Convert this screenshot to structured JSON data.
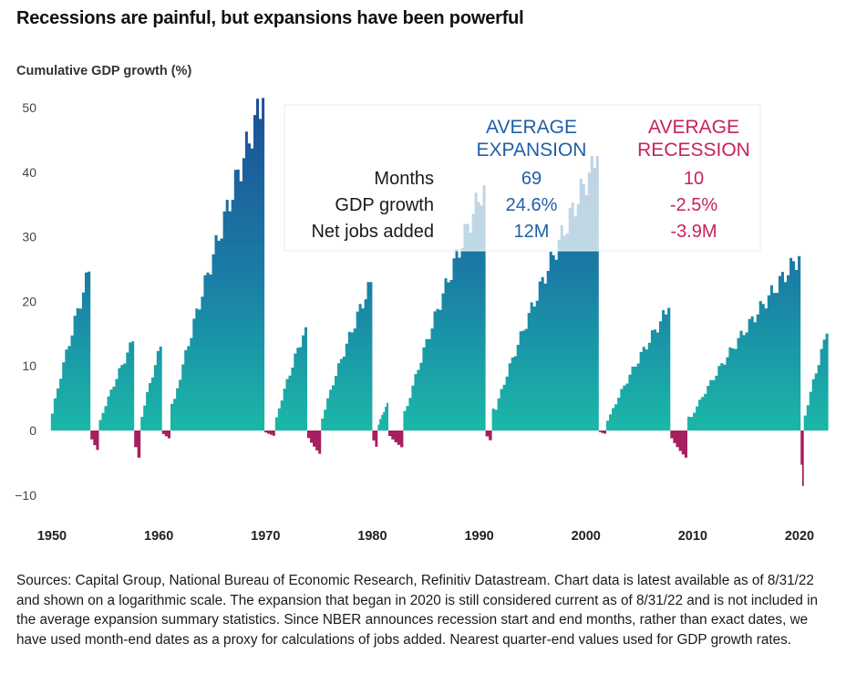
{
  "title": "Recessions are painful, but expansions have been powerful",
  "chart_data": {
    "type": "area",
    "ylabel": "Cumulative GDP growth (%)",
    "xlabel": "",
    "ylim": [
      -10,
      53
    ],
    "xlim": [
      1950,
      2023
    ],
    "y_ticks": [
      50,
      40,
      30,
      20,
      10,
      0,
      -10
    ],
    "x_ticks": [
      1950,
      1960,
      1970,
      1980,
      1990,
      2000,
      2010,
      2020
    ],
    "colors": {
      "expansion_top": "#1c5f9c",
      "expansion_bottom": "#19b3a6",
      "recession": "#a61f5e",
      "expansion_header": "#1f5fa8",
      "recession_header": "#c8215e"
    },
    "series": [
      {
        "name": "expansion",
        "start": 1949.9,
        "end": 1953.6,
        "peak": 24.6
      },
      {
        "name": "recession",
        "start": 1953.6,
        "end": 1954.4,
        "trough": -3.0
      },
      {
        "name": "expansion",
        "start": 1954.4,
        "end": 1957.7,
        "peak": 13.8
      },
      {
        "name": "recession",
        "start": 1957.7,
        "end": 1958.3,
        "trough": -4.2
      },
      {
        "name": "expansion",
        "start": 1958.3,
        "end": 1960.3,
        "peak": 13.0
      },
      {
        "name": "recession",
        "start": 1960.3,
        "end": 1961.1,
        "trough": -1.2
      },
      {
        "name": "expansion",
        "start": 1961.1,
        "end": 1969.9,
        "peak": 51.5
      },
      {
        "name": "recession",
        "start": 1969.9,
        "end": 1970.9,
        "trough": -0.8
      },
      {
        "name": "expansion",
        "start": 1970.9,
        "end": 1973.9,
        "peak": 16.0
      },
      {
        "name": "recession",
        "start": 1973.9,
        "end": 1975.2,
        "trough": -3.6
      },
      {
        "name": "expansion",
        "start": 1975.2,
        "end": 1980.0,
        "peak": 23.0
      },
      {
        "name": "recession",
        "start": 1980.0,
        "end": 1980.5,
        "trough": -2.5
      },
      {
        "name": "expansion",
        "start": 1980.5,
        "end": 1981.5,
        "peak": 4.3
      },
      {
        "name": "recession",
        "start": 1981.5,
        "end": 1982.9,
        "trough": -2.6
      },
      {
        "name": "expansion",
        "start": 1982.9,
        "end": 1990.6,
        "peak": 38.0
      },
      {
        "name": "recession",
        "start": 1990.6,
        "end": 1991.2,
        "trough": -1.5
      },
      {
        "name": "expansion",
        "start": 1991.2,
        "end": 2001.2,
        "peak": 42.5
      },
      {
        "name": "recession",
        "start": 2001.2,
        "end": 2001.9,
        "trough": -0.5
      },
      {
        "name": "expansion",
        "start": 2001.9,
        "end": 2007.9,
        "peak": 19.0
      },
      {
        "name": "recession",
        "start": 2007.9,
        "end": 2009.5,
        "trough": -4.2
      },
      {
        "name": "expansion",
        "start": 2009.5,
        "end": 2020.1,
        "peak": 27.0
      },
      {
        "name": "recession",
        "start": 2020.1,
        "end": 2020.4,
        "trough": -8.6
      },
      {
        "name": "expansion",
        "start": 2020.4,
        "end": 2022.7,
        "peak": 15.0
      }
    ],
    "summary": {
      "expansion_header": [
        "AVERAGE",
        "EXPANSION"
      ],
      "recession_header": [
        "AVERAGE",
        "RECESSION"
      ],
      "rows": [
        {
          "label": "Months",
          "expansion": "69",
          "recession": "10"
        },
        {
          "label": "GDP growth",
          "expansion": "24.6%",
          "recession": "-2.5%"
        },
        {
          "label": "Net jobs added",
          "expansion": "12M",
          "recession": "-3.9M"
        }
      ]
    }
  },
  "sources": "Sources: Capital Group, National Bureau of Economic Research, Refinitiv Datastream. Chart data is latest available as of 8/31/22 and shown on a logarithmic scale. The expansion that began in 2020 is still considered current as of 8/31/22 and is not included in the average expansion summary statistics. Since NBER announces recession start and end months, rather than exact dates, we have used month-end dates as a proxy for calculations of jobs added. Nearest quarter-end values used for GDP growth rates."
}
